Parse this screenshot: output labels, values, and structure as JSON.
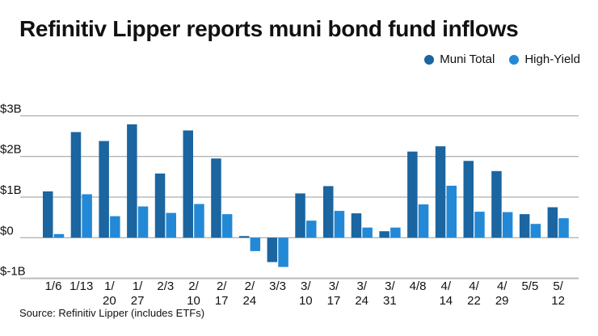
{
  "chart_data": {
    "type": "bar",
    "title": "Refinitiv Lipper reports muni bond fund inflows",
    "categories": [
      [
        "1/6"
      ],
      [
        "1/13"
      ],
      [
        "1/",
        "20"
      ],
      [
        "1/",
        "27"
      ],
      [
        "2/3"
      ],
      [
        "2/",
        "10"
      ],
      [
        "2/",
        "17"
      ],
      [
        "2/",
        "24"
      ],
      [
        "3/3"
      ],
      [
        "3/",
        "10"
      ],
      [
        "3/",
        "17"
      ],
      [
        "3/",
        "24"
      ],
      [
        "3/",
        "31"
      ],
      [
        "4/8"
      ],
      [
        "4/",
        "14"
      ],
      [
        "4/",
        "22"
      ],
      [
        "4/",
        "29"
      ],
      [
        "5/5"
      ],
      [
        "5/",
        "12"
      ]
    ],
    "series": [
      {
        "name": "Muni Total",
        "color": "#1b65a0",
        "values": [
          1.14,
          2.6,
          2.38,
          2.79,
          1.58,
          2.64,
          1.95,
          0.04,
          -0.6,
          1.09,
          1.27,
          0.6,
          0.16,
          2.12,
          2.25,
          1.89,
          1.64,
          0.58,
          0.75
        ]
      },
      {
        "name": "High-Yield",
        "color": "#2389d6",
        "values": [
          0.09,
          1.07,
          0.53,
          0.77,
          0.61,
          0.83,
          0.58,
          -0.33,
          -0.72,
          0.42,
          0.66,
          0.25,
          0.25,
          0.82,
          1.28,
          0.64,
          0.63,
          0.34,
          0.48
        ]
      }
    ],
    "ylim": [
      -1,
      3
    ],
    "yticks": [
      {
        "v": 3,
        "label": "$3B"
      },
      {
        "v": 2,
        "label": "$2B"
      },
      {
        "v": 1,
        "label": "$1B"
      },
      {
        "v": 0,
        "label": "$0"
      },
      {
        "v": -1,
        "label": "$-1B"
      }
    ],
    "ylabel": "",
    "xlabel": "",
    "grid": true,
    "legend_position": "top-right",
    "source": "Source: Refinitiv Lipper (includes ETFs)"
  }
}
